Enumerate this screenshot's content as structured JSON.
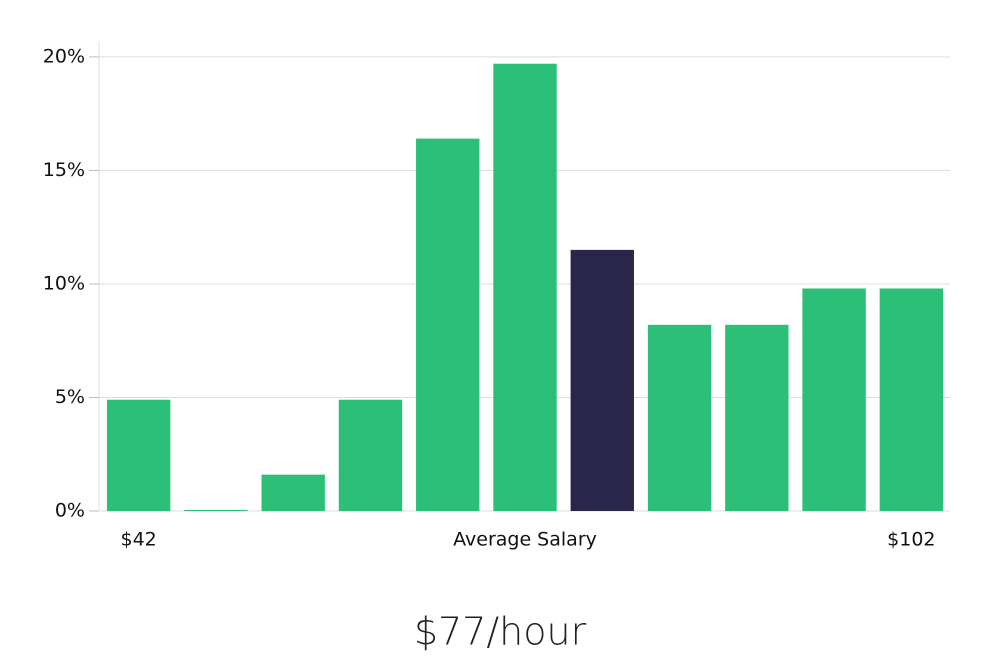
{
  "chart_data": {
    "type": "bar",
    "categories": [
      "$42",
      null,
      null,
      null,
      null,
      null,
      null,
      null,
      null,
      null,
      "$102"
    ],
    "values": [
      4.9,
      0,
      1.6,
      4.9,
      16.4,
      19.7,
      11.5,
      8.2,
      8.2,
      9.8,
      9.8
    ],
    "colors": [
      "#2bbf77",
      "#2bbf77",
      "#2bbf77",
      "#2bbf77",
      "#2bbf77",
      "#2bbf77",
      "#29264a",
      "#2bbf77",
      "#2bbf77",
      "#2bbf77",
      "#2bbf77"
    ],
    "xlabel": "Average Salary",
    "subtitle": "$77/hour",
    "ylim": [
      0,
      20.7
    ],
    "yticks": [
      {
        "value": 0,
        "label": "0%"
      },
      {
        "value": 5,
        "label": "5%"
      },
      {
        "value": 10,
        "label": "10%"
      },
      {
        "value": 15,
        "label": "15%"
      },
      {
        "value": 20,
        "label": "20%"
      }
    ],
    "grid": true
  }
}
